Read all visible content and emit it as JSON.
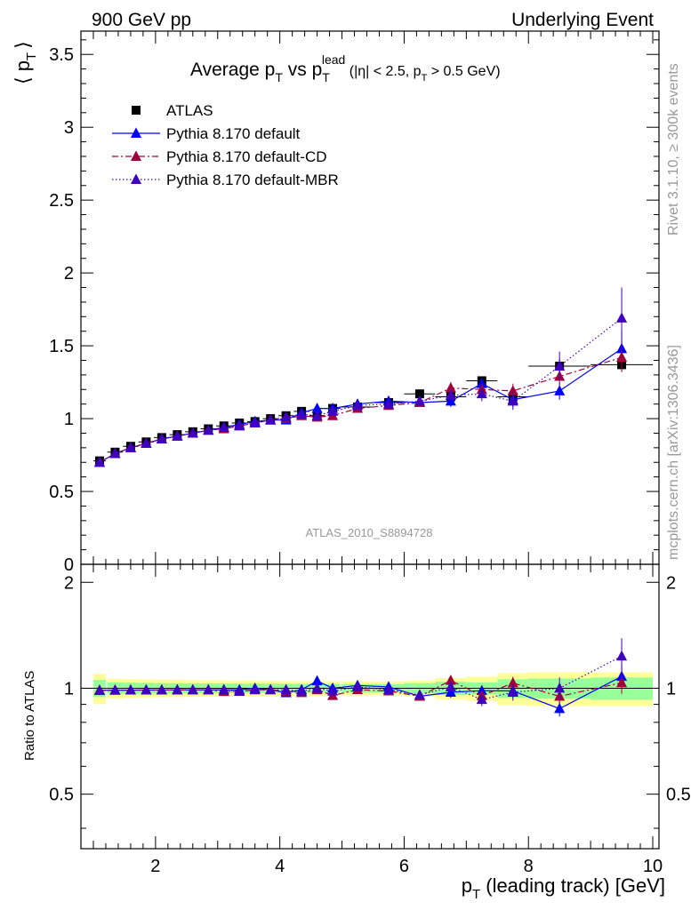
{
  "header": {
    "left": "900 GeV pp",
    "right": "Underlying Event"
  },
  "side_labels": {
    "rivet": "Rivet 3.1.10, ≥ 300k events",
    "mcplots": "mcplots.cern.ch [arXiv:1306.3436]"
  },
  "watermark": "ATLAS_2010_S8894728",
  "colors": {
    "atlas": "#000000",
    "default": "#0000ff",
    "cd": "#a0003c",
    "mbr": "#4000c0",
    "band_inner": "#99ff99",
    "band_outer": "#ffff99"
  },
  "chart_data": {
    "type": "scatter",
    "title": {
      "main": "Average p",
      "sub1": "T",
      "mid": " vs p",
      "sub2": "T",
      "sup2": "lead",
      "cut_a": " (|η| < 2.5, p",
      "cut_sub": "T",
      "cut_b": " > 0.5 GeV)"
    },
    "ylabel_main": {
      "open": "⟨ p",
      "sub": "T",
      "close": "⟩"
    },
    "ylabel_ratio": "Ratio to ATLAS",
    "xlabel": {
      "p": "p",
      "sub": "T",
      "rest": " (leading track) [GeV]"
    },
    "xlim": [
      0.8,
      10.1
    ],
    "ylim_main": [
      0,
      3.66
    ],
    "ylim_ratio": [
      0.35,
      2.25
    ],
    "xticks": [
      2,
      4,
      6,
      8,
      10
    ],
    "yticks_main": [
      0,
      0.5,
      1,
      1.5,
      2,
      2.5,
      3,
      3.5
    ],
    "yticks_main_labels": [
      "0",
      "0.5",
      "1",
      "1.5",
      "2",
      "2.5",
      "3",
      "3.5"
    ],
    "yticks_ratio": [
      0.5,
      1,
      2
    ],
    "yticks_ratio_labels": [
      "0.5",
      "1",
      "2"
    ],
    "x": [
      1.1,
      1.35,
      1.6,
      1.85,
      2.1,
      2.35,
      2.6,
      2.85,
      3.1,
      3.35,
      3.6,
      3.85,
      4.1,
      4.35,
      4.6,
      4.85,
      5.25,
      5.75,
      6.25,
      6.75,
      7.25,
      7.75,
      8.5,
      9.5
    ],
    "xerr": [
      0.1,
      0.125,
      0.125,
      0.125,
      0.125,
      0.125,
      0.125,
      0.125,
      0.125,
      0.125,
      0.125,
      0.125,
      0.125,
      0.125,
      0.125,
      0.125,
      0.25,
      0.25,
      0.25,
      0.25,
      0.25,
      0.25,
      0.5,
      0.5
    ],
    "atlas": [
      0.71,
      0.77,
      0.81,
      0.84,
      0.87,
      0.89,
      0.91,
      0.93,
      0.95,
      0.97,
      0.98,
      1.0,
      1.02,
      1.05,
      1.02,
      1.07,
      1.08,
      1.11,
      1.17,
      1.15,
      1.26,
      1.15,
      1.36,
      1.37
    ],
    "band_inner": [
      0.04,
      0.03,
      0.03,
      0.03,
      0.03,
      0.03,
      0.03,
      0.03,
      0.03,
      0.03,
      0.03,
      0.03,
      0.03,
      0.03,
      0.03,
      0.03,
      0.03,
      0.03,
      0.04,
      0.05,
      0.05,
      0.07,
      0.09,
      0.1
    ],
    "band_outer": [
      0.07,
      0.05,
      0.05,
      0.05,
      0.05,
      0.05,
      0.05,
      0.05,
      0.05,
      0.05,
      0.05,
      0.05,
      0.05,
      0.05,
      0.05,
      0.05,
      0.05,
      0.05,
      0.06,
      0.08,
      0.1,
      0.12,
      0.15,
      0.15
    ],
    "series": [
      {
        "name": "ATLAS",
        "key": "atlas",
        "marker": "square",
        "line": "none",
        "values": [
          0.71,
          0.77,
          0.81,
          0.84,
          0.87,
          0.89,
          0.91,
          0.93,
          0.95,
          0.97,
          0.98,
          1.0,
          1.02,
          1.05,
          1.02,
          1.07,
          1.08,
          1.11,
          1.17,
          1.15,
          1.26,
          1.15,
          1.36,
          1.37
        ],
        "errors": [
          0.01,
          0.01,
          0.01,
          0.01,
          0.01,
          0.01,
          0.01,
          0.01,
          0.01,
          0.01,
          0.01,
          0.01,
          0.01,
          0.01,
          0.01,
          0.01,
          0.01,
          0.01,
          0.02,
          0.03,
          0.03,
          0.04,
          0.05,
          0.05
        ]
      },
      {
        "name": "Pythia 8.170 default",
        "key": "default",
        "marker": "triangle",
        "line": "solid",
        "values": [
          0.7,
          0.76,
          0.8,
          0.83,
          0.86,
          0.88,
          0.9,
          0.92,
          0.94,
          0.96,
          0.98,
          0.99,
          0.99,
          1.04,
          1.07,
          1.07,
          1.1,
          1.12,
          1.11,
          1.12,
          1.24,
          1.13,
          1.19,
          1.48
        ],
        "errors": [
          0.01,
          0.01,
          0.01,
          0.01,
          0.01,
          0.01,
          0.01,
          0.01,
          0.01,
          0.01,
          0.01,
          0.01,
          0.01,
          0.01,
          0.02,
          0.02,
          0.02,
          0.03,
          0.03,
          0.04,
          0.04,
          0.05,
          0.06,
          0.12
        ]
      },
      {
        "name": "Pythia 8.170 default-CD",
        "key": "cd",
        "marker": "triangle",
        "line": "dashdot",
        "values": [
          0.7,
          0.76,
          0.8,
          0.83,
          0.86,
          0.88,
          0.9,
          0.92,
          0.93,
          0.95,
          0.97,
          0.99,
          1.0,
          1.02,
          1.01,
          1.02,
          1.07,
          1.09,
          1.11,
          1.21,
          1.2,
          1.19,
          1.29,
          1.42
        ],
        "errors": [
          0.01,
          0.01,
          0.01,
          0.01,
          0.01,
          0.01,
          0.01,
          0.01,
          0.01,
          0.01,
          0.01,
          0.01,
          0.01,
          0.01,
          0.02,
          0.02,
          0.02,
          0.03,
          0.03,
          0.04,
          0.04,
          0.05,
          0.06,
          0.1
        ]
      },
      {
        "name": "Pythia 8.170 default-MBR",
        "key": "mbr",
        "marker": "triangle",
        "line": "dotted",
        "values": [
          0.7,
          0.76,
          0.8,
          0.83,
          0.86,
          0.88,
          0.9,
          0.92,
          0.94,
          0.95,
          0.97,
          0.99,
          1.01,
          1.03,
          1.02,
          1.05,
          1.09,
          1.1,
          1.12,
          1.16,
          1.17,
          1.12,
          1.36,
          1.69
        ],
        "errors": [
          0.01,
          0.01,
          0.01,
          0.01,
          0.01,
          0.01,
          0.01,
          0.01,
          0.01,
          0.01,
          0.01,
          0.01,
          0.01,
          0.01,
          0.02,
          0.02,
          0.02,
          0.03,
          0.03,
          0.04,
          0.05,
          0.06,
          0.1,
          0.21
        ]
      }
    ],
    "legend_placement": "top-left"
  }
}
